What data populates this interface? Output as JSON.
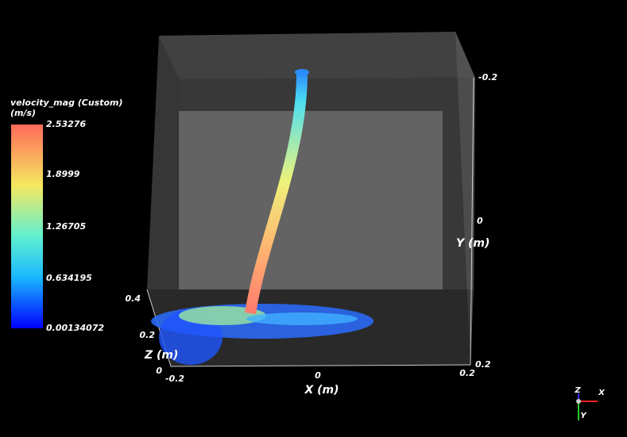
{
  "colorbar": {
    "title": "velocity_mag (Custom)",
    "unit": "(m/s)",
    "labels": [
      "2.53276",
      "1.8999",
      "1.26705",
      "0.634195",
      "0.00134072"
    ]
  },
  "axes": {
    "x": {
      "title": "X (m)",
      "ticks": [
        "-0.2",
        "0",
        "0.2"
      ]
    },
    "y": {
      "title": "Y (m)",
      "ticks": [
        "-0.2",
        "0",
        "0.2"
      ]
    },
    "z": {
      "title": "Z (m)",
      "ticks": [
        "0.4",
        "0.2",
        "0"
      ]
    }
  },
  "orientation": {
    "labels": [
      "Z",
      "X",
      "Y"
    ]
  }
}
